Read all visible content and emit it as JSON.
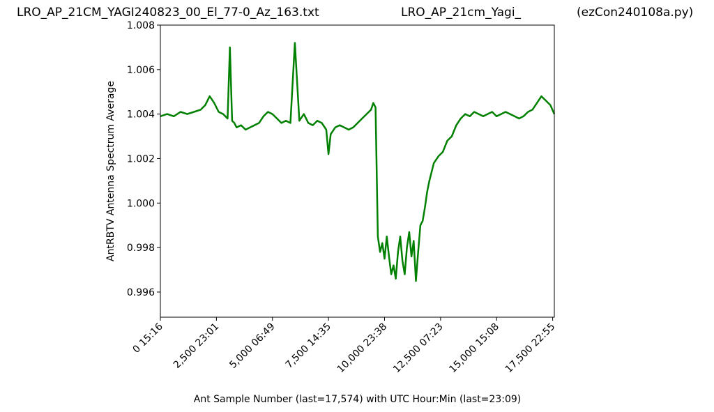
{
  "titles": {
    "left": "LRO_AP_21CM_YAGI240823_00_El_77-0_Az_163.txt",
    "middle": "LRO_AP_21cm_Yagi_",
    "right": "(ezCon240108a.py)"
  },
  "chart_data": {
    "type": "line",
    "title": "",
    "xlabel": "Ant Sample Number (last=17,574) with UTC Hour:Min (last=23:09)",
    "ylabel": "AntRBTV Antenna Spectrum Average",
    "xlim": [
      0,
      17574
    ],
    "ylim": [
      0.99487,
      1.008
    ],
    "color": "#008000",
    "grid": false,
    "yticks": [
      0.996,
      0.998,
      1.0,
      1.002,
      1.004,
      1.006,
      1.008
    ],
    "ytick_labels": [
      "0.996",
      "0.998",
      "1.000",
      "1.002",
      "1.004",
      "1.006",
      "1.008"
    ],
    "xticks": [
      0,
      2500,
      5000,
      7500,
      10000,
      12500,
      15000,
      17500
    ],
    "xtick_labels": [
      "0  15:16",
      "2,500  23:01",
      "5,000  06:49",
      "7,500  14:35",
      "10,000  23:38",
      "12,500  07:23",
      "15,000  15:08",
      "17,500  22:55"
    ],
    "series": [
      {
        "name": "",
        "x": [
          0,
          300,
          600,
          900,
          1200,
          1500,
          1800,
          2000,
          2200,
          2400,
          2600,
          2800,
          3000,
          3100,
          3200,
          3300,
          3400,
          3600,
          3800,
          4000,
          4200,
          4400,
          4600,
          4800,
          5000,
          5200,
          5400,
          5600,
          5800,
          6000,
          6200,
          6400,
          6600,
          6800,
          7000,
          7200,
          7400,
          7500,
          7600,
          7800,
          8000,
          8200,
          8400,
          8600,
          8800,
          9000,
          9200,
          9400,
          9500,
          9550,
          9600,
          9700,
          9800,
          9900,
          10000,
          10100,
          10200,
          10300,
          10400,
          10500,
          10600,
          10700,
          10800,
          10900,
          11000,
          11100,
          11200,
          11300,
          11400,
          11500,
          11600,
          11700,
          11800,
          11900,
          12000,
          12200,
          12400,
          12600,
          12800,
          13000,
          13200,
          13400,
          13600,
          13800,
          14000,
          14200,
          14400,
          14600,
          14800,
          15000,
          15200,
          15400,
          15600,
          15800,
          16000,
          16200,
          16400,
          16600,
          16800,
          17000,
          17200,
          17400,
          17574
        ],
        "y": [
          1.0039,
          1.004,
          1.0039,
          1.0041,
          1.004,
          1.0041,
          1.0042,
          1.0044,
          1.0048,
          1.0045,
          1.0041,
          1.004,
          1.0038,
          1.007,
          1.0037,
          1.0036,
          1.0034,
          1.0035,
          1.0033,
          1.0034,
          1.0035,
          1.0036,
          1.0039,
          1.0041,
          1.004,
          1.0038,
          1.0036,
          1.0037,
          1.0036,
          1.0072,
          1.0037,
          1.004,
          1.0036,
          1.0035,
          1.0037,
          1.0036,
          1.0033,
          1.0022,
          1.0031,
          1.0034,
          1.0035,
          1.0034,
          1.0033,
          1.0034,
          1.0036,
          1.0038,
          1.004,
          1.0042,
          1.0045,
          1.0044,
          1.0043,
          0.9985,
          0.9978,
          0.9982,
          0.9975,
          0.9985,
          0.9976,
          0.9968,
          0.9972,
          0.9966,
          0.9978,
          0.9985,
          0.9974,
          0.9968,
          0.998,
          0.9987,
          0.9976,
          0.9983,
          0.9965,
          0.9978,
          0.999,
          0.9992,
          0.9998,
          1.0005,
          1.001,
          1.0018,
          1.0021,
          1.0023,
          1.0028,
          1.003,
          1.0035,
          1.0038,
          1.004,
          1.0039,
          1.0041,
          1.004,
          1.0039,
          1.004,
          1.0041,
          1.0039,
          1.004,
          1.0041,
          1.004,
          1.0039,
          1.0038,
          1.0039,
          1.0041,
          1.0042,
          1.0045,
          1.0048,
          1.0046,
          1.0044,
          1.004
        ]
      }
    ]
  }
}
